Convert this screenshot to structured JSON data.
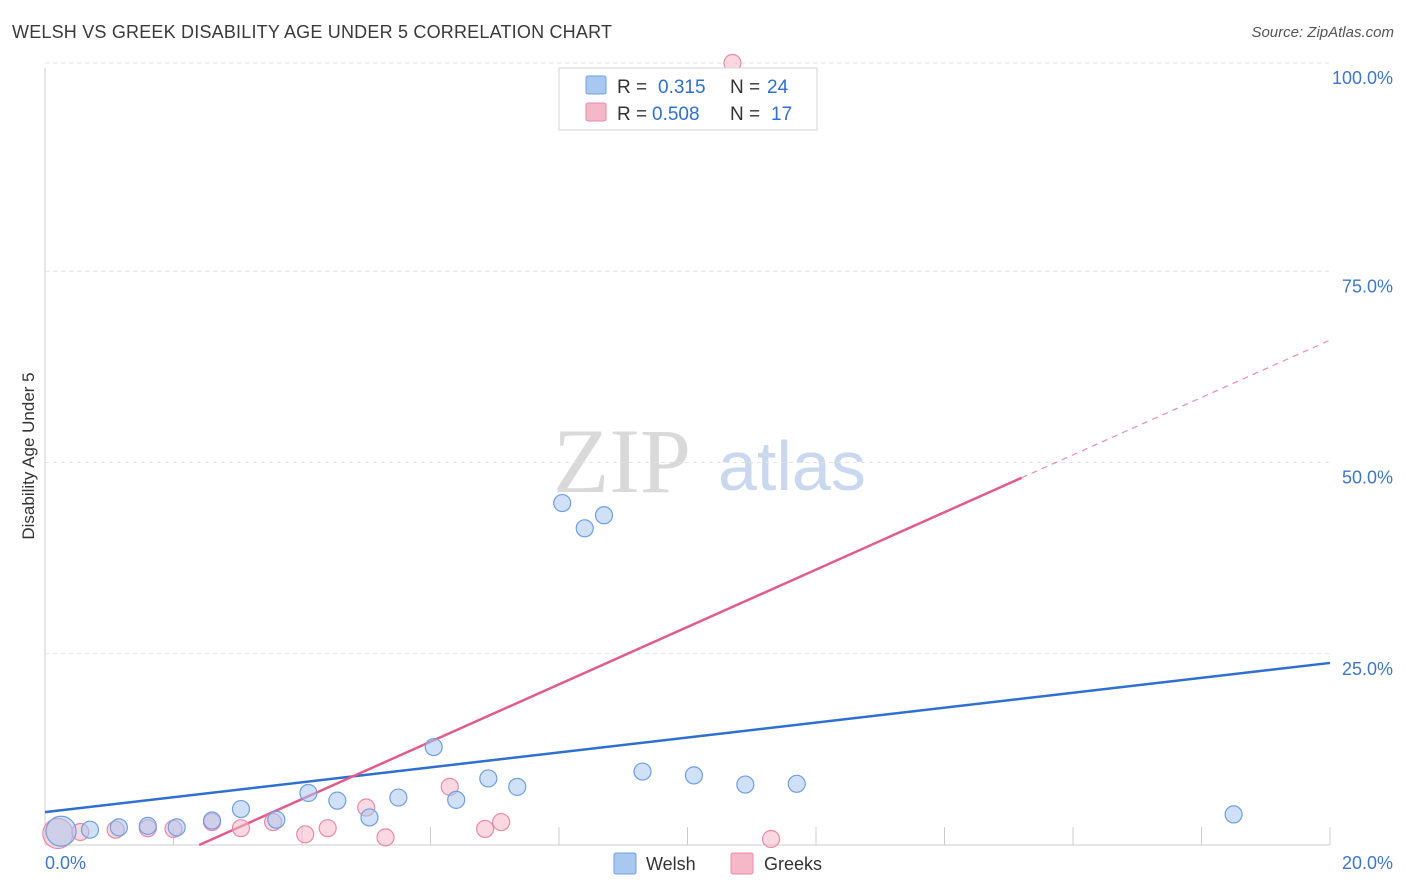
{
  "header": {
    "title": "WELSH VS GREEK DISABILITY AGE UNDER 5 CORRELATION CHART",
    "source": "Source: ZipAtlas.com"
  },
  "watermark": {
    "zip": "ZIP",
    "atlas": "atlas"
  },
  "legend_top": {
    "rows": [
      {
        "r_label": "R = ",
        "r_value": "0.315",
        "n_label": "N = ",
        "n_value": "24",
        "color": "#a9c8f0"
      },
      {
        "r_label": "R = ",
        "r_value": "0.508",
        "n_label": "N = ",
        "n_value": "17",
        "color": "#f5b8c9"
      }
    ]
  },
  "legend_bottom": {
    "items": [
      {
        "label": "Welsh"
      },
      {
        "label": "Greeks"
      }
    ]
  },
  "chart_data": {
    "type": "scatter",
    "title": "WELSH VS GREEK DISABILITY AGE UNDER 5 CORRELATION CHART",
    "xlabel": "",
    "ylabel": "Disability Age Under 5",
    "xlim": [
      0,
      20
    ],
    "ylim": [
      0,
      100
    ],
    "x_tick_labels": [
      "0.0%",
      "20.0%"
    ],
    "y_ticks": [
      25,
      50,
      75,
      100
    ],
    "y_tick_labels": [
      "25.0%",
      "50.0%",
      "75.0%",
      "100.0%"
    ],
    "grid": true,
    "series": [
      {
        "name": "Welsh",
        "color": "#a9c8f0",
        "stroke": "#6f9fe0",
        "line_color": "#2f6fcf",
        "R": 0.315,
        "N": 24,
        "trend": {
          "x0": 0,
          "y0": 4.3,
          "x1": 20,
          "y1": 23.8
        },
        "points": [
          [
            0.25,
            1.8
          ],
          [
            0.7,
            2.0
          ],
          [
            1.15,
            2.3
          ],
          [
            1.6,
            2.5
          ],
          [
            2.05,
            2.3
          ],
          [
            2.6,
            3.2
          ],
          [
            3.05,
            4.7
          ],
          [
            3.6,
            3.3
          ],
          [
            4.1,
            6.8
          ],
          [
            4.55,
            5.8
          ],
          [
            5.05,
            3.6
          ],
          [
            5.5,
            6.2
          ],
          [
            6.05,
            12.8
          ],
          [
            6.4,
            5.9
          ],
          [
            6.9,
            8.7
          ],
          [
            7.35,
            7.6
          ],
          [
            8.05,
            44.7
          ],
          [
            8.4,
            41.4
          ],
          [
            8.7,
            43.1
          ],
          [
            9.3,
            9.6
          ],
          [
            10.1,
            9.1
          ],
          [
            10.9,
            7.9
          ],
          [
            11.7,
            8.0
          ],
          [
            18.5,
            4.0
          ]
        ]
      },
      {
        "name": "Greeks",
        "color": "#f5b8c9",
        "stroke": "#e88aa6",
        "line_color": "#e05d8a",
        "R": 0.508,
        "N": 17,
        "trend": {
          "x0": 0,
          "y0": -9.0,
          "x1": 20,
          "y1": 66.0,
          "solid_until": 15.2
        },
        "points": [
          [
            0.2,
            1.5
          ],
          [
            0.55,
            1.7
          ],
          [
            1.1,
            2.0
          ],
          [
            1.6,
            2.2
          ],
          [
            2.0,
            2.1
          ],
          [
            2.6,
            3.0
          ],
          [
            3.05,
            2.2
          ],
          [
            3.55,
            3.0
          ],
          [
            4.05,
            1.4
          ],
          [
            4.4,
            2.2
          ],
          [
            5.0,
            4.9
          ],
          [
            5.3,
            1.0
          ],
          [
            6.3,
            7.6
          ],
          [
            6.85,
            2.1
          ],
          [
            7.1,
            3.0
          ],
          [
            11.3,
            0.7
          ],
          [
            10.7,
            100.0
          ]
        ]
      }
    ]
  }
}
